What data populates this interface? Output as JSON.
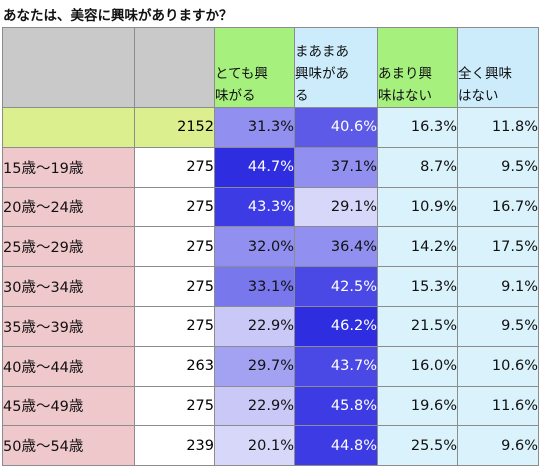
{
  "title": "あなたは、美容に興味がありますか？",
  "chart_data": {
    "type": "table",
    "columns": [
      "",
      "",
      "とても興味がる",
      "まあまあ興味がある",
      "あまり興味はない",
      "全く興味はない"
    ],
    "column_lines": [
      [],
      [],
      [
        "とても興",
        "味がる"
      ],
      [
        "まあまあ",
        "興味があ",
        "る"
      ],
      [
        "あまり興",
        "味はない"
      ],
      [
        "全く興味",
        "はない"
      ]
    ],
    "rows": [
      {
        "label": "",
        "count": "2152",
        "values": [
          "31.3%",
          "40.6%",
          "16.3%",
          "11.8%"
        ]
      },
      {
        "label": "15歳～19歳",
        "count": "275",
        "values": [
          "44.7%",
          "37.1%",
          "8.7%",
          "9.5%"
        ]
      },
      {
        "label": "20歳～24歳",
        "count": "275",
        "values": [
          "43.3%",
          "29.1%",
          "10.9%",
          "16.7%"
        ]
      },
      {
        "label": "25歳～29歳",
        "count": "275",
        "values": [
          "32.0%",
          "36.4%",
          "14.2%",
          "17.5%"
        ]
      },
      {
        "label": "30歳～34歳",
        "count": "275",
        "values": [
          "33.1%",
          "42.5%",
          "15.3%",
          "9.1%"
        ]
      },
      {
        "label": "35歳～39歳",
        "count": "275",
        "values": [
          "22.9%",
          "46.2%",
          "21.5%",
          "9.5%"
        ]
      },
      {
        "label": "40歳～44歳",
        "count": "263",
        "values": [
          "29.7%",
          "43.7%",
          "16.0%",
          "10.6%"
        ]
      },
      {
        "label": "45歳～49歳",
        "count": "275",
        "values": [
          "22.9%",
          "45.8%",
          "19.6%",
          "11.6%"
        ]
      },
      {
        "label": "50歳～54歳",
        "count": "239",
        "values": [
          "20.1%",
          "44.8%",
          "25.5%",
          "9.6%"
        ]
      }
    ],
    "cell_shades": [
      [
        5,
        9
      ],
      [
        1,
        7
      ],
      [
        2,
        2
      ],
      [
        6,
        6
      ],
      [
        6,
        9
      ],
      [
        8,
        9
      ],
      [
        7,
        8
      ],
      [
        8,
        8
      ],
      [
        8,
        8
      ]
    ],
    "colors": {
      "title_blank": "#c9c9c9",
      "header_green": "#a6f07e",
      "header_blue": "#ccecfb",
      "total_row": "#dbef8e",
      "age_label": "#efc8cc",
      "count_bg": "#ffffff",
      "pct_text_light": "#ffffff",
      "pct_text_dark": "#111111",
      "purple_scale": [
        "#d7d7f9",
        "#c9c8f7",
        "#b4b3f4",
        "#a3a2f2",
        "#9190f0",
        "#7877ec",
        "#5c5ae7",
        "#4b49e5",
        "#3d3be3",
        "#2f2de0"
      ],
      "low_blue": "#daf2fc"
    }
  }
}
